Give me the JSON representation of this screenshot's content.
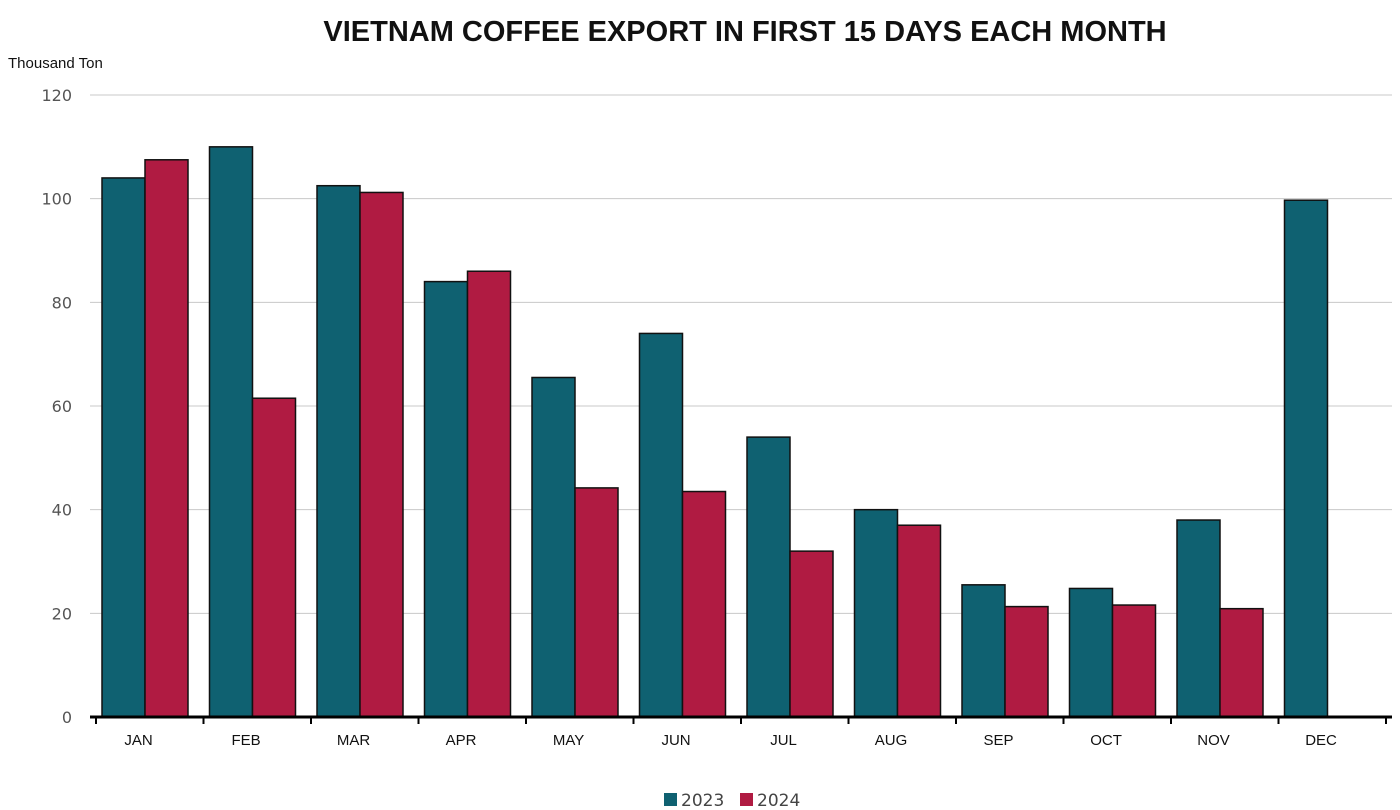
{
  "chart_data": {
    "type": "bar",
    "title": "VIETNAM COFFEE EXPORT IN FIRST 15 DAYS EACH MONTH",
    "ylabel": "Thousand Ton",
    "xlabel": "",
    "ylim": [
      0,
      120
    ],
    "yticks": [
      0,
      20,
      40,
      60,
      80,
      100,
      120
    ],
    "grid": true,
    "legend_position": "bottom-center",
    "categories": [
      "JAN",
      "FEB",
      "MAR",
      "APR",
      "MAY",
      "JUN",
      "JUL",
      "AUG",
      "SEP",
      "OCT",
      "NOV",
      "DEC"
    ],
    "series": [
      {
        "name": "2023",
        "color": "#0f6171",
        "values": [
          104,
          110,
          102.5,
          84,
          65.5,
          74,
          54,
          40,
          25.5,
          24.8,
          38,
          99.7
        ]
      },
      {
        "name": "2024",
        "color": "#b01b42",
        "values": [
          107.5,
          61.5,
          101.2,
          86,
          44.2,
          43.5,
          32,
          37,
          21.3,
          21.6,
          20.9,
          null
        ]
      }
    ]
  }
}
